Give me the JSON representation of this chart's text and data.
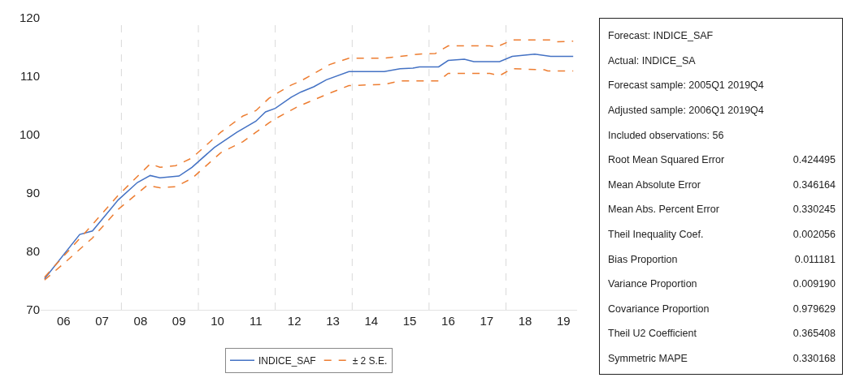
{
  "chart_data": [
    {
      "type": "line",
      "xlim": [
        "2005-11-25",
        "2019-11-07"
      ],
      "xticks": [
        {
          "value": "2006-07",
          "label": "06"
        },
        {
          "value": "2007-07",
          "label": "07"
        },
        {
          "value": "2008-07",
          "label": "08"
        },
        {
          "value": "2009-07",
          "label": "09"
        },
        {
          "value": "2010-07",
          "label": "10"
        },
        {
          "value": "2011-07",
          "label": "11"
        },
        {
          "value": "2012-07",
          "label": "12"
        },
        {
          "value": "2013-07",
          "label": "13"
        },
        {
          "value": "2014-07",
          "label": "14"
        },
        {
          "value": "2015-07",
          "label": "15"
        },
        {
          "value": "2016-07",
          "label": "16"
        },
        {
          "value": "2017-07",
          "label": "17"
        },
        {
          "value": "2018-07",
          "label": "18"
        },
        {
          "value": "2019-07",
          "label": "19"
        }
      ],
      "ylim": [
        70,
        120
      ],
      "yticks": [
        70,
        80,
        90,
        100,
        110,
        120
      ],
      "grid": false,
      "legend": "bottom",
      "ref_lines": [
        {
          "axis": "x",
          "value": "2008-01",
          "color": "#d9d9d9",
          "line_style": "dashed"
        },
        {
          "axis": "x",
          "value": "2010-01",
          "color": "#d9d9d9",
          "line_style": "dashed"
        },
        {
          "axis": "x",
          "value": "2012-01",
          "color": "#d9d9d9",
          "line_style": "dashed"
        },
        {
          "axis": "x",
          "value": "2014-01",
          "color": "#d9d9d9",
          "line_style": "dashed"
        },
        {
          "axis": "x",
          "value": "2016-01",
          "color": "#d9d9d9",
          "line_style": "dashed"
        },
        {
          "axis": "x",
          "value": "2018-01",
          "color": "#d9d9d9",
          "line_style": "dashed"
        }
      ],
      "series": [
        {
          "name": "INDICE_SAF",
          "color": "#4472c4",
          "line_style": "solid",
          "x": [
            "2006-01",
            "2006-12",
            "2007-04",
            "2007-12",
            "2008-06",
            "2008-10",
            "2009-01",
            "2009-07",
            "2009-11",
            "2010-06",
            "2011-01",
            "2011-07",
            "2011-10",
            "2012-01",
            "2012-06",
            "2012-09",
            "2013-01",
            "2013-05",
            "2013-12",
            "2014-11",
            "2015-04",
            "2015-08",
            "2015-10",
            "2016-04",
            "2016-07",
            "2016-12",
            "2017-03",
            "2017-11",
            "2018-03",
            "2018-10",
            "2019-03",
            "2019-10"
          ],
          "values": [
            75.3,
            82.9,
            83.5,
            88.8,
            91.8,
            93.0,
            92.6,
            92.9,
            94.4,
            97.8,
            100.4,
            102.3,
            103.9,
            104.5,
            106.4,
            107.3,
            108.2,
            109.4,
            110.8,
            110.8,
            111.3,
            111.4,
            111.6,
            111.6,
            112.7,
            112.9,
            112.5,
            112.5,
            113.4,
            113.8,
            113.4,
            113.4
          ]
        },
        {
          "name": "± 2 S.E.",
          "color": "#ed7d31",
          "line_style": "dashed",
          "x": [
            "2006-01",
            "2006-07",
            "2007-04",
            "2007-12",
            "2008-09",
            "2009-01",
            "2009-06",
            "2009-11",
            "2010-08",
            "2011-03",
            "2011-07",
            "2011-11",
            "2012-01",
            "2012-08",
            "2013-06",
            "2013-12",
            "2014-11",
            "2015-04",
            "2015-11",
            "2016-04",
            "2016-07",
            "2017-08",
            "2017-11",
            "2018-03",
            "2019-01",
            "2019-02",
            "2019-10"
          ],
          "values": [
            75.1,
            77.9,
            82.3,
            87.2,
            91.3,
            90.9,
            91.1,
            92.5,
            96.9,
            98.8,
            100.4,
            102.0,
            102.7,
            104.8,
            107.1,
            108.4,
            108.6,
            109.2,
            109.2,
            109.2,
            110.5,
            110.5,
            110.1,
            111.3,
            111.1,
            110.9,
            110.9
          ]
        },
        {
          "color": "#ed7d31",
          "line_style": "dashed",
          "x": [
            "2006-01",
            "2007-04",
            "2007-12",
            "2008-10",
            "2009-01",
            "2009-06",
            "2009-11",
            "2010-08",
            "2011-03",
            "2011-07",
            "2011-11",
            "2012-01",
            "2012-06",
            "2012-09",
            "2013-06",
            "2013-12",
            "2014-11",
            "2015-04",
            "2015-10",
            "2016-03",
            "2016-07",
            "2017-08",
            "2017-10",
            "2018-03",
            "2019-03",
            "2019-05",
            "2019-10"
          ],
          "values": [
            75.6,
            84.6,
            89.6,
            95.0,
            94.4,
            94.7,
            96.0,
            100.4,
            103.2,
            104.1,
            106.2,
            106.9,
            108.5,
            109.2,
            112.0,
            113.1,
            113.1,
            113.4,
            113.8,
            113.9,
            115.2,
            115.2,
            115.0,
            116.2,
            116.2,
            115.9,
            116.0
          ]
        }
      ]
    },
    {
      "type": "other",
      "annotations": [
        "Forecast: INDICE_SAF",
        "Actual: INDICE_SA",
        "Forecast sample: 2005Q1 2019Q4",
        "Adjusted sample: 2006Q1 2019Q4",
        "Included observations: 56",
        "Root Mean Squared Error\t0.424495",
        "Mean Absolute Error\t0.346164",
        "Mean Abs. Percent Error\t0.330245",
        "Theil Inequality Coef.\t0.002056",
        "Bias Proportion\t0.011181",
        "Variance Proportion\t0.009190",
        "Covariance Proportion\t0.979629",
        "Theil U2 Coefficient\t0.365408",
        "Symmetric MAPE\t0.330168"
      ]
    }
  ]
}
